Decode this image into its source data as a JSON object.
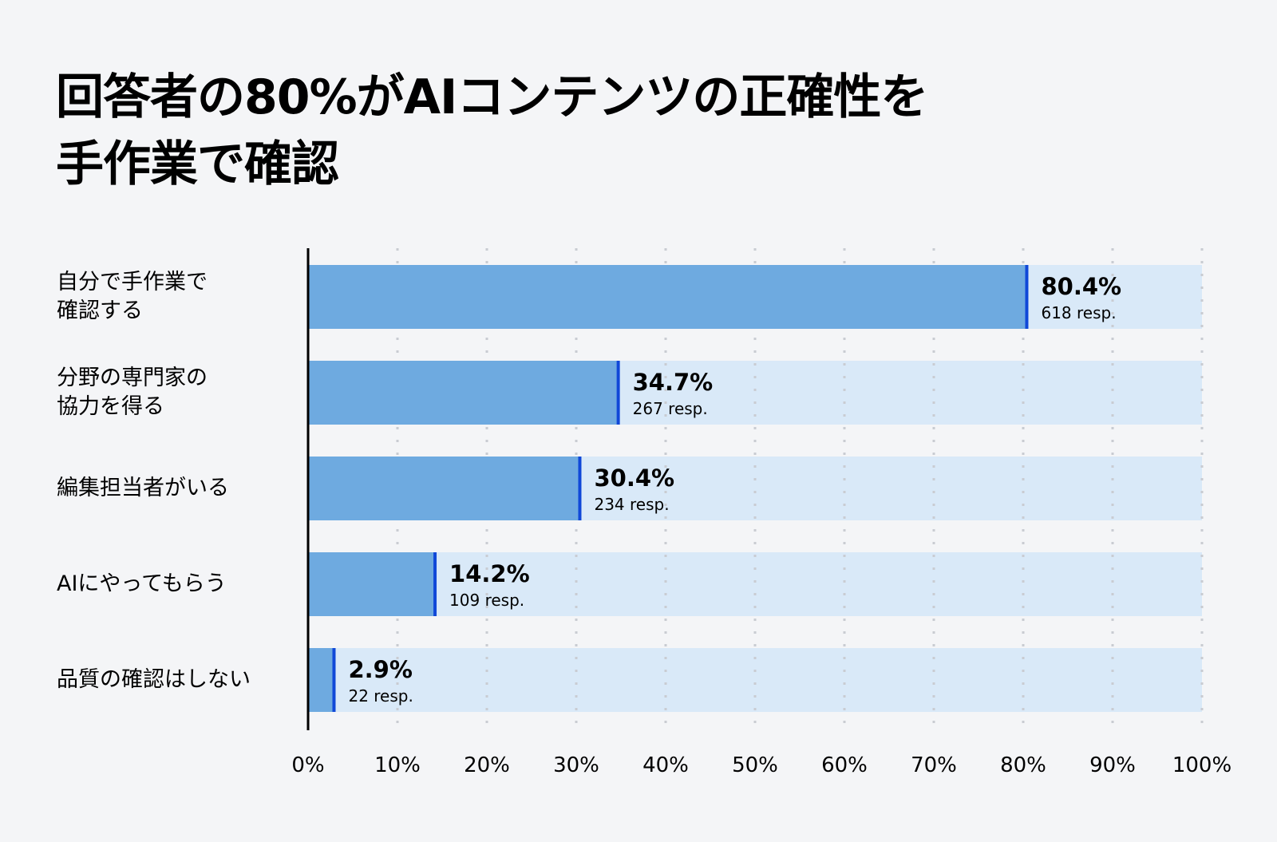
{
  "title_lines": [
    "回答者の80%がAIコンテンツの正確性を",
    "手作業で確認"
  ],
  "colors": {
    "bar": "#6eaae0",
    "track": "#d9e9f8",
    "marker": "#1048d8",
    "grid": "#c9ccd2",
    "axis": "#000000",
    "background": "#f4f5f7"
  },
  "chart_data": {
    "type": "bar",
    "orientation": "horizontal",
    "title": "回答者の80%がAIコンテンツの正確性を手作業で確認",
    "categories": [
      [
        "自分で手作業で",
        "確認する"
      ],
      [
        "分野の専門家の",
        "協力を得る"
      ],
      [
        "編集担当者がいる"
      ],
      [
        "AIにやってもらう"
      ],
      [
        "品質の確認はしない"
      ]
    ],
    "values": [
      80.4,
      34.7,
      30.4,
      14.2,
      2.9
    ],
    "value_labels": [
      "80.4%",
      "34.7%",
      "30.4%",
      "14.2%",
      "2.9%"
    ],
    "responses": [
      "618 resp.",
      "267 resp.",
      "234 resp.",
      "109 resp.",
      "22 resp."
    ],
    "xlim": [
      0,
      100
    ],
    "x_ticks": [
      "0%",
      "10%",
      "20%",
      "30%",
      "40%",
      "50%",
      "60%",
      "70%",
      "80%",
      "90%",
      "100%"
    ],
    "grid": "vertical dotted"
  }
}
